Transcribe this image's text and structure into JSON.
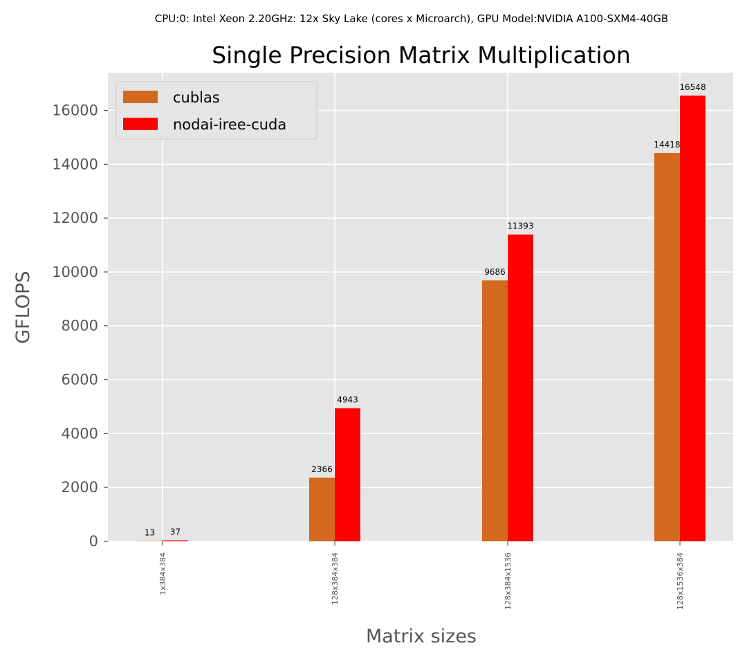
{
  "chart_data": {
    "type": "bar",
    "suptitle": "CPU:0: Intel Xeon 2.20GHz: 12x Sky Lake (cores x Microarch), GPU Model:NVIDIA A100-SXM4-40GB",
    "title": "Single Precision Matrix Multiplication",
    "xlabel": "Matrix sizes",
    "ylabel": "GFLOPS",
    "ylim": [
      0,
      17400
    ],
    "yticks": [
      0,
      2000,
      4000,
      6000,
      8000,
      10000,
      12000,
      14000,
      16000
    ],
    "ytick_labels": [
      "0",
      "2000",
      "4000",
      "6000",
      "8000",
      "10000",
      "12000",
      "14000",
      "16000"
    ],
    "categories": [
      "1x384x384",
      "128x384x384",
      "128x384x1536",
      "128x1536x384"
    ],
    "series": [
      {
        "name": "cublas",
        "color": "#D2691E",
        "values": [
          13,
          2366,
          9686,
          14418
        ]
      },
      {
        "name": "nodai-iree-cuda",
        "color": "#FF0000",
        "values": [
          37,
          4943,
          11393,
          16548
        ]
      }
    ],
    "legend_position": "upper-left",
    "grid": true
  }
}
